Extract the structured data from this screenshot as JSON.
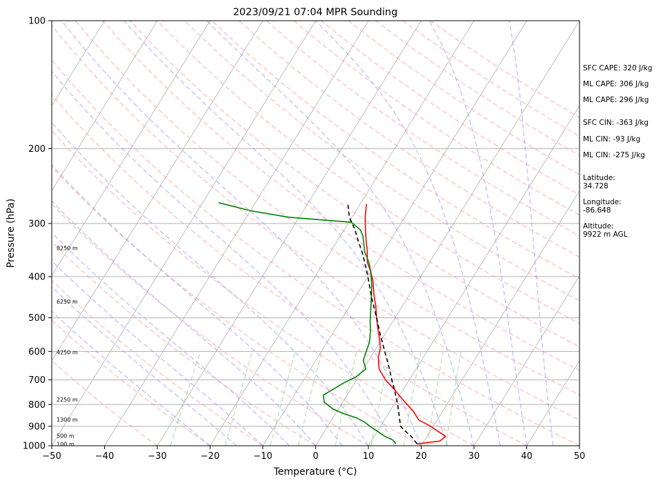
{
  "chart_data": {
    "type": "line",
    "title": "2023/09/21 07:04 MPR Sounding",
    "xlabel": "Temperature (°C)",
    "ylabel": "Pressure (hPa)",
    "xlim": [
      -50,
      50
    ],
    "ylim": [
      1000,
      100
    ],
    "y_scale": "log",
    "x_ticks": [
      -50,
      -40,
      -30,
      -20,
      -10,
      0,
      10,
      20,
      30,
      40,
      50
    ],
    "y_ticks": [
      1000,
      900,
      800,
      700,
      600,
      500,
      400,
      300,
      200,
      100
    ],
    "grid": "horizontal at pressure ticks, skewed isotherms",
    "height_labels": [
      {
        "label": "100 m",
        "p": 990
      },
      {
        "label": "500 m",
        "p": 948
      },
      {
        "label": "1300 m",
        "p": 867
      },
      {
        "label": "2250 m",
        "p": 778
      },
      {
        "label": "4250 m",
        "p": 603
      },
      {
        "label": "6250 m",
        "p": 458
      },
      {
        "label": "8250 m",
        "p": 343
      }
    ],
    "series": [
      {
        "id": "temperature",
        "color": "#ff0000",
        "points": [
          [
            990,
            19.0
          ],
          [
            975,
            23.0
          ],
          [
            950,
            23.5
          ],
          [
            925,
            21.5
          ],
          [
            900,
            19.5
          ],
          [
            870,
            16.5
          ],
          [
            850,
            15.5
          ],
          [
            830,
            14.5
          ],
          [
            800,
            12.5
          ],
          [
            770,
            10.5
          ],
          [
            740,
            8.5
          ],
          [
            700,
            5.5
          ],
          [
            660,
            3.0
          ],
          [
            620,
            1.5
          ],
          [
            590,
            0.8
          ],
          [
            560,
            -0.5
          ],
          [
            530,
            -2.0
          ],
          [
            500,
            -3.5
          ],
          [
            470,
            -5.0
          ],
          [
            440,
            -6.8
          ],
          [
            410,
            -8.5
          ],
          [
            390,
            -10.0
          ],
          [
            370,
            -11.8
          ],
          [
            350,
            -13.0
          ],
          [
            330,
            -14.5
          ],
          [
            310,
            -16.0
          ],
          [
            290,
            -17.5
          ],
          [
            270,
            -18.8
          ]
        ]
      },
      {
        "id": "dewpoint",
        "color": "#008000",
        "points": [
          [
            990,
            15.0
          ],
          [
            970,
            14.0
          ],
          [
            950,
            12.0
          ],
          [
            925,
            10.0
          ],
          [
            900,
            8.0
          ],
          [
            880,
            6.5
          ],
          [
            860,
            4.5
          ],
          [
            840,
            1.5
          ],
          [
            820,
            -1.0
          ],
          [
            790,
            -3.5
          ],
          [
            760,
            -4.5
          ],
          [
            730,
            -3.0
          ],
          [
            710,
            -2.0
          ],
          [
            690,
            -0.5
          ],
          [
            660,
            0.5
          ],
          [
            630,
            -1.0
          ],
          [
            600,
            -1.5
          ],
          [
            570,
            -2.0
          ],
          [
            540,
            -3.0
          ],
          [
            510,
            -4.3
          ],
          [
            480,
            -5.5
          ],
          [
            450,
            -6.8
          ],
          [
            420,
            -8.2
          ],
          [
            390,
            -10.0
          ],
          [
            370,
            -11.5
          ],
          [
            350,
            -13.5
          ],
          [
            330,
            -15.0
          ],
          [
            320,
            -15.8
          ],
          [
            310,
            -17.0
          ],
          [
            298,
            -19.5
          ],
          [
            290,
            -32.0
          ],
          [
            280,
            -40.0
          ],
          [
            268,
            -47.0
          ]
        ]
      },
      {
        "id": "parcel",
        "color": "#000000",
        "style": "dashed",
        "points": [
          [
            990,
            19.0
          ],
          [
            950,
            17.0
          ],
          [
            920,
            15.0
          ],
          [
            900,
            13.8
          ],
          [
            850,
            12.3
          ],
          [
            800,
            10.7
          ],
          [
            750,
            8.8
          ],
          [
            700,
            6.7
          ],
          [
            650,
            4.5
          ],
          [
            600,
            2.0
          ],
          [
            550,
            -0.7
          ],
          [
            500,
            -3.5
          ],
          [
            450,
            -6.7
          ],
          [
            400,
            -10.0
          ],
          [
            370,
            -12.3
          ],
          [
            350,
            -14.0
          ],
          [
            330,
            -16.0
          ],
          [
            310,
            -18.0
          ],
          [
            290,
            -20.5
          ],
          [
            268,
            -22.5
          ]
        ]
      }
    ],
    "info": [
      "SFC CAPE: 320 J/kg",
      "ML CAPE: 306 J/kg",
      "ML CAPE: 296 J/kg",
      "SFC CIN: -363 J/kg",
      "ML CIN: -93 J/kg",
      "ML CIN: -275 J/kg",
      "Latitude:",
      "34.728",
      "Longitude:",
      "-86.648",
      "Altitude:",
      "9922 m AGL"
    ],
    "colors": {
      "isotherm": "#b0b0b0",
      "dry_adiabat": "#ff9999",
      "moist_adiabat": "#9999ff",
      "mixing_ratio": "#88cc88"
    }
  }
}
